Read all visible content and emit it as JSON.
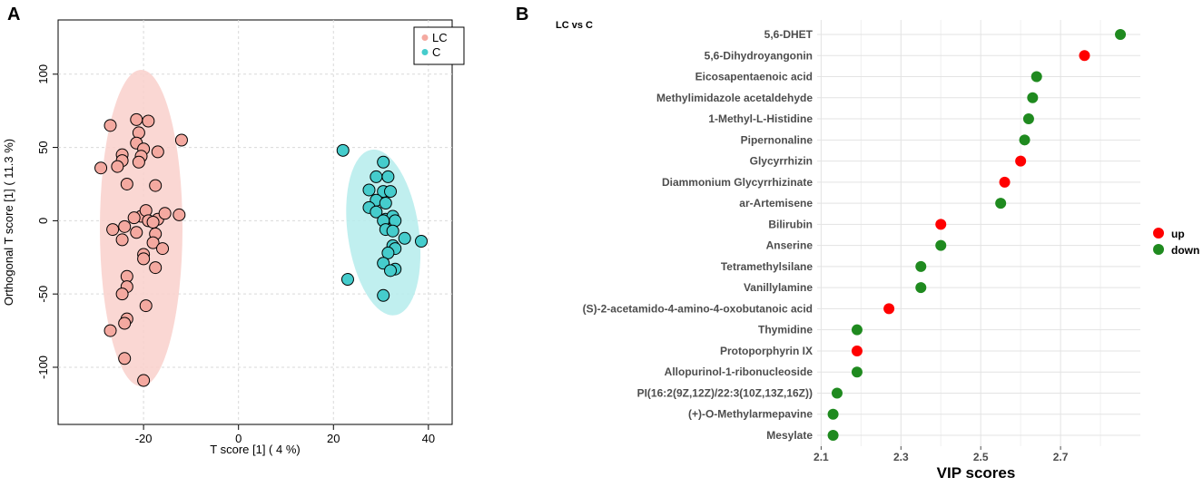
{
  "panels": {
    "a_letter": "A",
    "b_letter": "B"
  },
  "colors": {
    "lc_fill": "#f4a9a0",
    "lc_ellipse": "#f9d0cb",
    "c_fill": "#45cccc",
    "c_ellipse": "#b5ecec",
    "up": "#ff0000",
    "down": "#1f8a1f"
  },
  "chart_data": [
    {
      "type": "scatter",
      "title": "",
      "xlabel": "T score [1] ( 4 %)",
      "ylabel": "Orthogonal T score [1] ( 11.3 %)",
      "xlim": [
        -38,
        45
      ],
      "ylim": [
        -139,
        137
      ],
      "xticks": [
        "-20",
        "0",
        "20",
        "40"
      ],
      "xtick_values": [
        -20,
        0,
        20,
        40
      ],
      "yticks": [
        "100",
        "50",
        "0",
        "-50",
        "-100"
      ],
      "ytick_values": [
        100,
        50,
        0,
        -50,
        -100
      ],
      "legend": {
        "position": "top-right",
        "entries": [
          "LC",
          "C"
        ]
      },
      "series": [
        {
          "name": "LC",
          "ellipse": {
            "cx": -20.5,
            "cy": -5,
            "rx": 8.7,
            "ry": 108
          },
          "points": [
            [
              -27,
              65
            ],
            [
              -21.5,
              69
            ],
            [
              -19,
              68
            ],
            [
              -21,
              60
            ],
            [
              -21.5,
              53
            ],
            [
              -20,
              49
            ],
            [
              -12,
              55
            ],
            [
              -24.5,
              45
            ],
            [
              -20.5,
              44
            ],
            [
              -17,
              47
            ],
            [
              -21,
              40
            ],
            [
              -24.5,
              41
            ],
            [
              -29,
              36
            ],
            [
              -25.5,
              37
            ],
            [
              -17.5,
              24
            ],
            [
              -23.5,
              25
            ],
            [
              -20.5,
              3
            ],
            [
              -22,
              2
            ],
            [
              -19.5,
              7
            ],
            [
              -17,
              1
            ],
            [
              -15.5,
              5
            ],
            [
              -12.5,
              4
            ],
            [
              -19,
              0
            ],
            [
              -18,
              -1
            ],
            [
              -24,
              -4
            ],
            [
              -26.5,
              -6
            ],
            [
              -21.5,
              -8
            ],
            [
              -17.5,
              -9
            ],
            [
              -24.5,
              -13
            ],
            [
              -18,
              -15
            ],
            [
              -16,
              -19
            ],
            [
              -20,
              -23
            ],
            [
              -20,
              -26
            ],
            [
              -17.5,
              -32
            ],
            [
              -23.5,
              -38
            ],
            [
              -23.5,
              -45
            ],
            [
              -24.5,
              -50
            ],
            [
              -19.5,
              -58
            ],
            [
              -23.5,
              -67
            ],
            [
              -24,
              -70
            ],
            [
              -27,
              -75
            ],
            [
              -24,
              -94
            ],
            [
              -20,
              -109
            ]
          ]
        },
        {
          "name": "C",
          "ellipse": {
            "cx": 30.5,
            "cy": -8,
            "rx": 7.5,
            "ry": 57
          },
          "points": [
            [
              22,
              48
            ],
            [
              30.5,
              40
            ],
            [
              29,
              30
            ],
            [
              31.5,
              30
            ],
            [
              27.5,
              21
            ],
            [
              30.5,
              20
            ],
            [
              32,
              20
            ],
            [
              29,
              14
            ],
            [
              31,
              12
            ],
            [
              27.5,
              9
            ],
            [
              29,
              6
            ],
            [
              31,
              1
            ],
            [
              32.5,
              3
            ],
            [
              33,
              0
            ],
            [
              30.5,
              0
            ],
            [
              31,
              -6
            ],
            [
              32.5,
              -7
            ],
            [
              35,
              -12
            ],
            [
              38.5,
              -14
            ],
            [
              32.5,
              -17
            ],
            [
              33,
              -19
            ],
            [
              31.5,
              -22
            ],
            [
              30.5,
              -29
            ],
            [
              33,
              -33
            ],
            [
              32,
              -34
            ],
            [
              23,
              -40
            ],
            [
              30.5,
              -51
            ]
          ]
        }
      ]
    },
    {
      "type": "dot",
      "title": "LC vs C",
      "xlabel": "VIP scores",
      "xlim": [
        2.09,
        2.9
      ],
      "xticks": [
        "2.1",
        "2.3",
        "2.5",
        "2.7"
      ],
      "xtick_values": [
        2.1,
        2.3,
        2.5,
        2.7
      ],
      "legend": {
        "position": "right",
        "entries": [
          "up",
          "down"
        ]
      },
      "categories": [
        "5,6-DHET",
        "5,6-Dihydroyangonin",
        "Eicosapentaenoic acid",
        "Methylimidazole acetaldehyde",
        "1-Methyl-L-Histidine",
        "Pipernonaline",
        "Glycyrrhizin",
        "Diammonium Glycyrrhizinate",
        "ar-Artemisene",
        "Bilirubin",
        "Anserine",
        "Tetramethylsilane",
        "Vanillylamine",
        "(S)-2-acetamido-4-amino-4-oxobutanoic acid",
        "Thymidine",
        "Protoporphyrin IX",
        "Allopurinol-1-ribonucleoside",
        "PI(16:2(9Z,12Z)/22:3(10Z,13Z,16Z))",
        "(+)-O-Methylarmepavine",
        "Mesylate"
      ],
      "values": [
        2.85,
        2.76,
        2.64,
        2.63,
        2.62,
        2.61,
        2.6,
        2.56,
        2.55,
        2.4,
        2.4,
        2.35,
        2.35,
        2.27,
        2.19,
        2.19,
        2.19,
        2.14,
        2.13,
        2.13
      ],
      "direction": [
        "down",
        "up",
        "down",
        "down",
        "down",
        "down",
        "up",
        "up",
        "down",
        "up",
        "down",
        "down",
        "down",
        "up",
        "down",
        "up",
        "down",
        "down",
        "down",
        "down"
      ]
    }
  ]
}
